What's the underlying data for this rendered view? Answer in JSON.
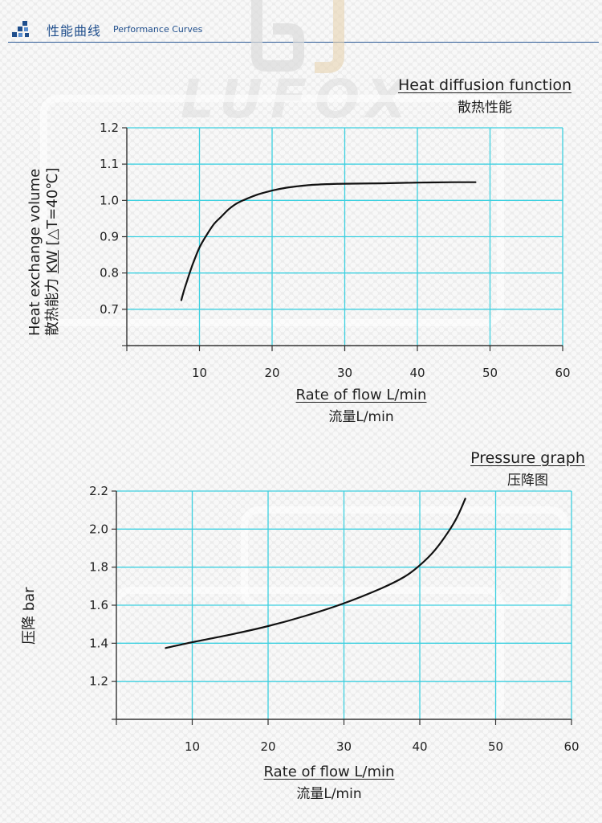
{
  "header": {
    "title_zh": "性能曲线",
    "title_en": "Performance Curves",
    "rule_color": "#2d5a96"
  },
  "watermark": {
    "text": "LUFOX"
  },
  "colors": {
    "grid": "#3cd0e0",
    "axis": "#333333",
    "curve": "#111111"
  },
  "chart_data": [
    {
      "type": "line",
      "title": "Heat diffusion function",
      "subtitle": "散热性能",
      "xlabel": "Rate of flow L/min",
      "xlabel_zh": "流量L/min",
      "ylabel_line1": "Heat exchange volume",
      "ylabel_line2_zh": "散热能力",
      "ylabel_unit": "KW",
      "ylabel_cond": "[△T=40℃]",
      "xlim": [
        0,
        60
      ],
      "ylim": [
        0.6,
        1.2
      ],
      "xticks": [
        10,
        20,
        30,
        40,
        50,
        60
      ],
      "yticks": [
        0.7,
        0.8,
        0.9,
        1.0,
        1.1,
        1.2
      ],
      "ytick_labels": [
        "0.7",
        "0.8",
        "0.9",
        "1.0",
        "1.1",
        "1.2"
      ],
      "grid": true,
      "series": [
        {
          "x": [
            7.5,
            8,
            9,
            10,
            11,
            12,
            13,
            14,
            15,
            16,
            18,
            20,
            22,
            25,
            28,
            30,
            35,
            40,
            45,
            48
          ],
          "y": [
            0.725,
            0.76,
            0.82,
            0.87,
            0.905,
            0.935,
            0.955,
            0.975,
            0.99,
            1.0,
            1.016,
            1.027,
            1.035,
            1.042,
            1.045,
            1.046,
            1.047,
            1.049,
            1.05,
            1.05
          ]
        }
      ]
    },
    {
      "type": "line",
      "title": "Pressure graph",
      "subtitle": "压降图",
      "xlabel": "Rate of flow L/min",
      "xlabel_zh": "流量L/min",
      "ylabel": "压降 bar",
      "xlim": [
        0,
        60
      ],
      "ylim": [
        1.0,
        2.2
      ],
      "xticks": [
        10,
        20,
        30,
        40,
        50,
        60
      ],
      "yticks": [
        1.2,
        1.4,
        1.6,
        1.8,
        2.0,
        2.2
      ],
      "ytick_labels": [
        "1.2",
        "1.4",
        "1.6",
        "1.8",
        "2.0",
        "2.2"
      ],
      "grid": true,
      "series": [
        {
          "x": [
            6.5,
            10,
            15,
            20,
            25,
            30,
            35,
            38,
            40,
            42,
            44,
            45,
            46
          ],
          "y": [
            1.375,
            1.405,
            1.445,
            1.49,
            1.545,
            1.61,
            1.69,
            1.75,
            1.81,
            1.89,
            2.0,
            2.07,
            2.16
          ]
        }
      ]
    }
  ]
}
